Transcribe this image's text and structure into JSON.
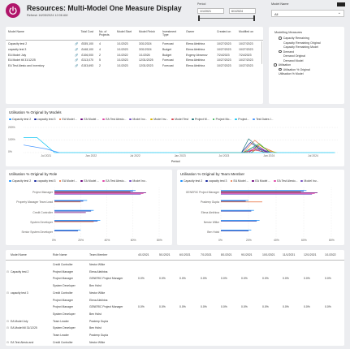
{
  "header": {
    "title": "Resources: Multi-Model One Measure Display",
    "refresh": "Refresh 16/05/2024 12:06 AM"
  },
  "period": {
    "label": "Period",
    "start": "1/1/2021",
    "end": "6/1/2024"
  },
  "model_name_slicer": {
    "label": "Model Name",
    "selected": "All"
  },
  "top_table": {
    "columns": [
      "Model Name",
      "",
      "Total Cost",
      "No. of Projects",
      "Model Start",
      "Model Finish",
      "Investment Type",
      "Owner",
      "Created on",
      "Modified on"
    ],
    "rows": [
      {
        "name": "Capacity test 2",
        "cost": "£535,100",
        "projects": "4",
        "start": "1/1/2023",
        "finish": "3/31/2024",
        "type": "Forecast",
        "owner": "Elena Alekhina",
        "created": "10/27/2023",
        "modified": "10/27/2023"
      },
      {
        "name": "capacity test 3",
        "cost": "£448,100",
        "projects": "4",
        "start": "1/1/2023",
        "finish": "3/31/2024",
        "type": "Budget",
        "owner": "Elena Alekhina",
        "created": "10/27/2023",
        "modified": "10/27/2023"
      },
      {
        "name": "EA Model July",
        "cost": "£106,000",
        "projects": "2",
        "start": "1/1/2022",
        "finish": "1/1/2026",
        "type": "Budget",
        "owner": "Evgeny Abramov",
        "created": "7/24/2023",
        "modified": "7/24/2023"
      },
      {
        "name": "EA Model till 31/12/25",
        "cost": "£313,070",
        "projects": "5",
        "start": "1/1/2023",
        "finish": "12/31/2025",
        "type": "Forecast",
        "owner": "Elena Alekhina",
        "created": "10/27/2023",
        "modified": "10/27/2023"
      },
      {
        "name": "EA Test Alesto and Inventory",
        "cost": "£153,693",
        "projects": "2",
        "start": "1/1/2023",
        "finish": "12/31/2023",
        "type": "Forecast",
        "owner": "Elena Alekhina",
        "created": "10/27/2023",
        "modified": "10/27/2023"
      }
    ]
  },
  "measures": {
    "title": "Modelling Measures",
    "items": [
      {
        "label": "Capacity Remaining",
        "indent": 1,
        "kind": "radio",
        "on": false
      },
      {
        "label": "Capacity Remaining Original",
        "indent": 2,
        "kind": "none",
        "on": false
      },
      {
        "label": "Capacity Remaining Model",
        "indent": 2,
        "kind": "none",
        "on": false
      },
      {
        "label": "Demand",
        "indent": 1,
        "kind": "radio",
        "on": false
      },
      {
        "label": "Demand Original",
        "indent": 2,
        "kind": "none",
        "on": false
      },
      {
        "label": "Demand Model",
        "indent": 2,
        "kind": "none",
        "on": false
      },
      {
        "label": "Utilisation",
        "indent": 0,
        "kind": "radio",
        "on": false
      },
      {
        "label": "Utilisation % Original",
        "indent": 1,
        "kind": "radio",
        "on": true
      },
      {
        "label": "Utilisation % Model",
        "indent": 1,
        "kind": "none",
        "on": false
      }
    ]
  },
  "line_chart": {
    "title": "Utilisation % Original by Models",
    "legend": [
      {
        "name": "Capacity test 2",
        "color": "#118dff"
      },
      {
        "name": "capacity test 3",
        "color": "#12239e"
      },
      {
        "name": "EA Model ...",
        "color": "#e66c37"
      },
      {
        "name": "EA Model ...",
        "color": "#6b007b"
      },
      {
        "name": "EA Test Alesto...",
        "color": "#e044a7"
      },
      {
        "name": "Model Inv...",
        "color": "#744ec2"
      },
      {
        "name": "Model Inv...",
        "color": "#d9b300"
      },
      {
        "name": "Model Test",
        "color": "#d64550"
      },
      {
        "name": "Project M...",
        "color": "#197278"
      },
      {
        "name": "Project Mo...",
        "color": "#1aab40"
      },
      {
        "name": "Project...",
        "color": "#15c6f4"
      },
      {
        "name": "Test Dates I...",
        "color": "#4092ff"
      }
    ],
    "y_ticks": [
      "200%",
      "100%",
      "0%"
    ],
    "x_ticks": [
      "Jul 2021",
      "Jan 2022",
      "Jul 2022",
      "Jan 2023",
      "Jul 2023",
      "Jan 2024",
      "Jul 2024"
    ],
    "x_title": "Period"
  },
  "role_chart": {
    "title": "Utilisation % Original by Role",
    "legend": [
      {
        "name": "Capacity test 2",
        "color": "#118dff"
      },
      {
        "name": "capacity test 3",
        "color": "#12239e"
      },
      {
        "name": "EA Model ...",
        "color": "#e66c37"
      },
      {
        "name": "EA Model ...",
        "color": "#6b007b"
      },
      {
        "name": "EA Test Alesto...",
        "color": "#e044a7"
      },
      {
        "name": "Model Inv...",
        "color": "#744ec2"
      }
    ],
    "categories": [
      "Project Manager",
      "Property Manager Team Lead",
      "Credit Controller",
      "System Developer",
      "Senior System Developer"
    ],
    "x_ticks": [
      "0%",
      "20%",
      "40%",
      "60%",
      "80%"
    ]
  },
  "member_chart": {
    "title": "Utilisation % Original by Team Member",
    "legend": [
      {
        "name": "Capacity test 2",
        "color": "#118dff"
      },
      {
        "name": "capacity test 3",
        "color": "#12239e"
      },
      {
        "name": "EA Model ...",
        "color": "#e66c37"
      },
      {
        "name": "EA Model ...",
        "color": "#6b007b"
      },
      {
        "name": "EA Test Alesto...",
        "color": "#e044a7"
      },
      {
        "name": "Model Inv...",
        "color": "#744ec2"
      }
    ],
    "categories": [
      "GENERIC Project Manager",
      "Pradeep Gupta",
      "Elena Alekhina",
      "Nestor Wilke",
      "Ben Holst"
    ],
    "x_ticks": [
      "0%",
      "20%",
      "40%",
      "60%",
      "80%"
    ]
  },
  "matrix": {
    "columns": [
      "Model Name",
      "Role Name",
      "Team Member",
      "4/1/2021",
      "5/1/2021",
      "6/1/2021",
      "7/1/2021",
      "8/1/2021",
      "9/1/2021",
      "10/1/2021",
      "11/1/2021",
      "12/1/2021",
      "1/1/2022"
    ],
    "rows": [
      {
        "model": "",
        "role": "Credit Controller",
        "member": "Nestor Wilke",
        "vals": [
          "",
          "",
          "",
          "",
          "",
          "",
          "",
          "",
          "",
          ""
        ]
      },
      {
        "model": "Capacity test 2",
        "role": "Project Manager",
        "member": "Elena Alekhina",
        "vals": [
          "",
          "",
          "",
          "",
          "",
          "",
          "",
          "",
          "",
          ""
        ]
      },
      {
        "model": "",
        "role": "Project Manager",
        "member": "GENERIC Project Manager",
        "vals": [
          "0.0%",
          "0.0%",
          "0.0%",
          "0.0%",
          "0.0%",
          "0.0%",
          "0.0%",
          "0.0%",
          "0.0%",
          "0.0%"
        ]
      },
      {
        "model": "",
        "role": "System Developer",
        "member": "Ben Holst",
        "vals": [
          "",
          "",
          "",
          "",
          "",
          "",
          "",
          "",
          "",
          ""
        ]
      },
      {
        "model": "capacity test 3",
        "role": "Credit Controller",
        "member": "Nestor Wilke",
        "vals": [
          "",
          "",
          "",
          "",
          "",
          "",
          "",
          "",
          "",
          ""
        ]
      },
      {
        "model": "",
        "role": "Project Manager",
        "member": "Elena Alekhina",
        "vals": [
          "",
          "",
          "",
          "",
          "",
          "",
          "",
          "",
          "",
          ""
        ]
      },
      {
        "model": "",
        "role": "Project Manager",
        "member": "GENERIC Project Manager",
        "vals": [
          "0.0%",
          "0.0%",
          "0.0%",
          "0.0%",
          "0.0%",
          "0.0%",
          "0.0%",
          "0.0%",
          "0.0%",
          "0.0%"
        ]
      },
      {
        "model": "",
        "role": "System Developer",
        "member": "Ben Holst",
        "vals": [
          "",
          "",
          "",
          "",
          "",
          "",
          "",
          "",
          "",
          ""
        ]
      },
      {
        "model": "EA Model July",
        "role": "Team Leader",
        "member": "Pradeep Gupta",
        "vals": [
          "",
          "",
          "",
          "",
          "",
          "",
          "",
          "",
          "",
          ""
        ]
      },
      {
        "model": "EA Model till 31/12/25",
        "role": "System Developer",
        "member": "Ben Holst",
        "vals": [
          "",
          "",
          "",
          "",
          "",
          "",
          "",
          "",
          "",
          ""
        ]
      },
      {
        "model": "",
        "role": "Team Leader",
        "member": "Pradeep Gupta",
        "vals": [
          "",
          "",
          "",
          "",
          "",
          "",
          "",
          "",
          "",
          ""
        ]
      },
      {
        "model": "EA Test Alesto and",
        "role": "Credit Controller",
        "member": "Nestor Wilke",
        "vals": [
          "",
          "",
          "",
          "",
          "",
          "",
          "",
          "",
          "",
          ""
        ]
      }
    ]
  }
}
